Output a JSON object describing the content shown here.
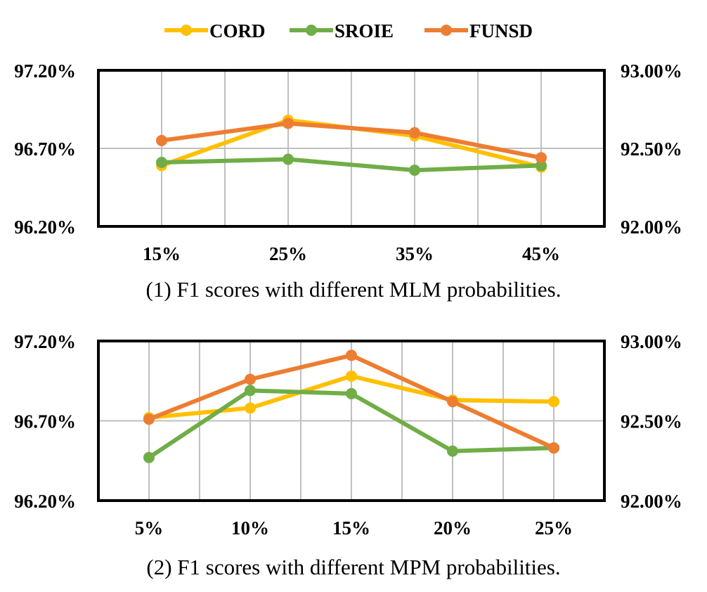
{
  "legend": [
    {
      "name": "CORD",
      "color": "#FFC000"
    },
    {
      "name": "SROIE",
      "color": "#70AD47"
    },
    {
      "name": "FUNSD",
      "color": "#ED7D31"
    }
  ],
  "colors": {
    "axis": "#000000",
    "grid": "#BFBFBF"
  },
  "chart_data": [
    {
      "type": "line",
      "caption": "(1) F1 scores with different MLM probabilities.",
      "categories": [
        "15%",
        "25%",
        "35%",
        "45%"
      ],
      "y_left": {
        "range": [
          96.2,
          97.2
        ],
        "ticks": [
          "97.20%",
          "96.70%",
          "96.20%"
        ],
        "tick_values": [
          97.2,
          96.7,
          96.2
        ]
      },
      "y_right": {
        "range": [
          92.0,
          93.0
        ],
        "ticks": [
          "93.00%",
          "92.50%",
          "92.00%"
        ],
        "tick_values": [
          93.0,
          92.5,
          92.0
        ]
      },
      "grid": true,
      "series": [
        {
          "name": "CORD",
          "axis": "left",
          "values": [
            96.59,
            96.88,
            96.78,
            96.58
          ]
        },
        {
          "name": "SROIE",
          "axis": "left",
          "values": [
            96.61,
            96.63,
            96.56,
            96.59
          ]
        },
        {
          "name": "FUNSD",
          "axis": "right",
          "values": [
            92.55,
            92.66,
            92.6,
            92.44
          ]
        }
      ]
    },
    {
      "type": "line",
      "caption": "(2) F1 scores with different MPM probabilities.",
      "categories": [
        "5%",
        "10%",
        "15%",
        "20%",
        "25%"
      ],
      "y_left": {
        "range": [
          96.2,
          97.2
        ],
        "ticks": [
          "97.20%",
          "96.70%",
          "96.20%"
        ],
        "tick_values": [
          97.2,
          96.7,
          96.2
        ]
      },
      "y_right": {
        "range": [
          92.0,
          93.0
        ],
        "ticks": [
          "93.00%",
          "92.50%",
          "92.00%"
        ],
        "tick_values": [
          93.0,
          92.5,
          92.0
        ]
      },
      "grid": true,
      "series": [
        {
          "name": "CORD",
          "axis": "left",
          "values": [
            96.72,
            96.78,
            96.98,
            96.83,
            96.82
          ]
        },
        {
          "name": "SROIE",
          "axis": "left",
          "values": [
            96.47,
            96.89,
            96.87,
            96.51,
            96.53
          ]
        },
        {
          "name": "FUNSD",
          "axis": "right",
          "values": [
            92.51,
            92.76,
            92.91,
            92.62,
            92.33
          ]
        }
      ]
    }
  ]
}
